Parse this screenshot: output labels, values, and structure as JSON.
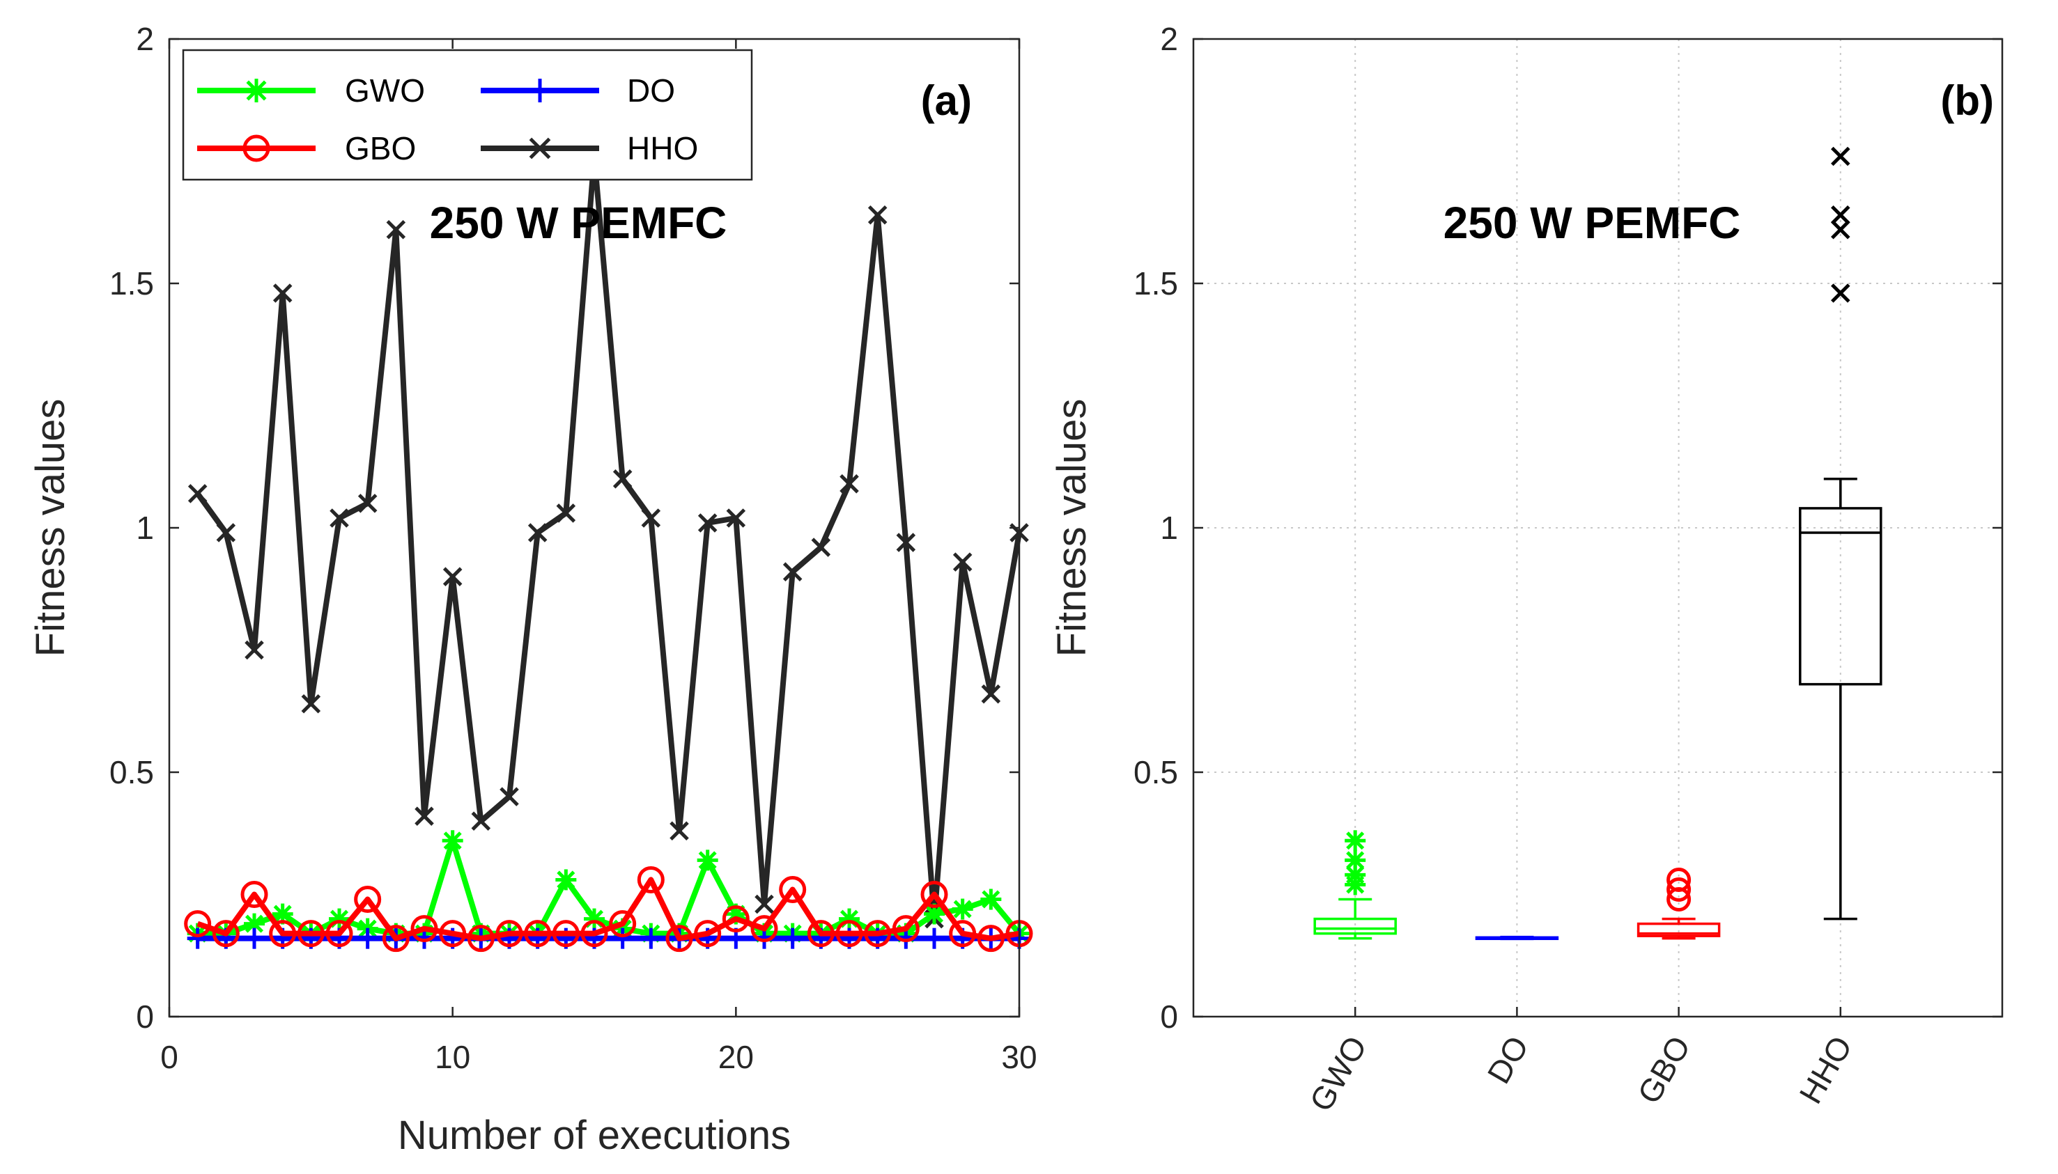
{
  "chart_data": [
    {
      "panel": "(a)",
      "type": "line",
      "annotation": "250 W PEMFC",
      "xlabel": "Number of executions",
      "ylabel": "Fitness values",
      "xlim": [
        0,
        30
      ],
      "ylim": [
        0,
        2
      ],
      "xticks": [
        "0",
        "10",
        "20",
        "30"
      ],
      "yticks": [
        "0",
        "0.5",
        "1",
        "1.5",
        "2"
      ],
      "grid": false,
      "legend_placement": "top-left",
      "x": [
        1,
        2,
        3,
        4,
        5,
        6,
        7,
        8,
        9,
        10,
        11,
        12,
        13,
        14,
        15,
        16,
        17,
        18,
        19,
        20,
        21,
        22,
        23,
        24,
        25,
        26,
        27,
        28,
        29,
        30
      ],
      "series": [
        {
          "name": "GWO",
          "color": "#00ff00",
          "marker": "asterisk",
          "values": [
            0.17,
            0.17,
            0.19,
            0.21,
            0.17,
            0.2,
            0.18,
            0.17,
            0.17,
            0.36,
            0.17,
            0.17,
            0.17,
            0.28,
            0.2,
            0.18,
            0.17,
            0.17,
            0.32,
            0.21,
            0.17,
            0.17,
            0.17,
            0.2,
            0.17,
            0.17,
            0.21,
            0.22,
            0.24,
            0.17
          ]
        },
        {
          "name": "DO",
          "color": "#0000ff",
          "marker": "plus",
          "values": [
            0.16,
            0.16,
            0.16,
            0.16,
            0.16,
            0.16,
            0.16,
            0.16,
            0.16,
            0.16,
            0.16,
            0.16,
            0.16,
            0.16,
            0.16,
            0.16,
            0.16,
            0.16,
            0.16,
            0.16,
            0.16,
            0.16,
            0.16,
            0.16,
            0.16,
            0.16,
            0.16,
            0.16,
            0.16,
            0.16
          ]
        },
        {
          "name": "GBO",
          "color": "#ff0000",
          "marker": "circle",
          "values": [
            0.19,
            0.17,
            0.25,
            0.17,
            0.17,
            0.17,
            0.24,
            0.16,
            0.18,
            0.17,
            0.16,
            0.17,
            0.17,
            0.17,
            0.17,
            0.19,
            0.28,
            0.16,
            0.17,
            0.2,
            0.18,
            0.26,
            0.17,
            0.17,
            0.17,
            0.18,
            0.25,
            0.17,
            0.16,
            0.17
          ]
        },
        {
          "name": "HHO",
          "color": "#262626",
          "marker": "x",
          "values": [
            1.07,
            0.99,
            0.75,
            1.48,
            0.64,
            1.02,
            1.05,
            1.61,
            0.41,
            0.9,
            0.4,
            0.45,
            0.99,
            1.03,
            1.76,
            1.1,
            1.02,
            0.38,
            1.01,
            1.02,
            0.23,
            0.91,
            0.96,
            1.09,
            1.64,
            0.97,
            0.2,
            0.93,
            0.66,
            0.99
          ]
        }
      ]
    },
    {
      "panel": "(b)",
      "type": "boxplot",
      "annotation": "250 W PEMFC",
      "ylabel": "Fitness values",
      "ylim": [
        0,
        2
      ],
      "yticks": [
        "0",
        "0.5",
        "1",
        "1.5",
        "2"
      ],
      "grid": true,
      "categories": [
        "GWO",
        "DO",
        "GBO",
        "HHO"
      ],
      "boxes": [
        {
          "name": "GWO",
          "color": "#00ff00",
          "outlier_marker": "asterisk",
          "whisker_low": 0.16,
          "q1": 0.17,
          "median": 0.18,
          "q3": 0.2,
          "whisker_high": 0.24,
          "outliers": [
            0.27,
            0.29,
            0.32,
            0.36
          ]
        },
        {
          "name": "DO",
          "color": "#0000ff",
          "outlier_marker": "plus",
          "whisker_low": 0.159,
          "q1": 0.16,
          "median": 0.161,
          "q3": 0.162,
          "whisker_high": 0.163,
          "outliers": []
        },
        {
          "name": "GBO",
          "color": "#ff0000",
          "outlier_marker": "circle",
          "whisker_low": 0.16,
          "q1": 0.165,
          "median": 0.17,
          "q3": 0.19,
          "whisker_high": 0.2,
          "outliers": [
            0.24,
            0.26,
            0.28
          ]
        },
        {
          "name": "HHO",
          "color": "#000000",
          "outlier_marker": "x",
          "whisker_low": 0.2,
          "q1": 0.68,
          "median": 0.99,
          "q3": 1.04,
          "whisker_high": 1.1,
          "outliers": [
            1.48,
            1.61,
            1.64,
            1.76
          ]
        }
      ]
    }
  ]
}
